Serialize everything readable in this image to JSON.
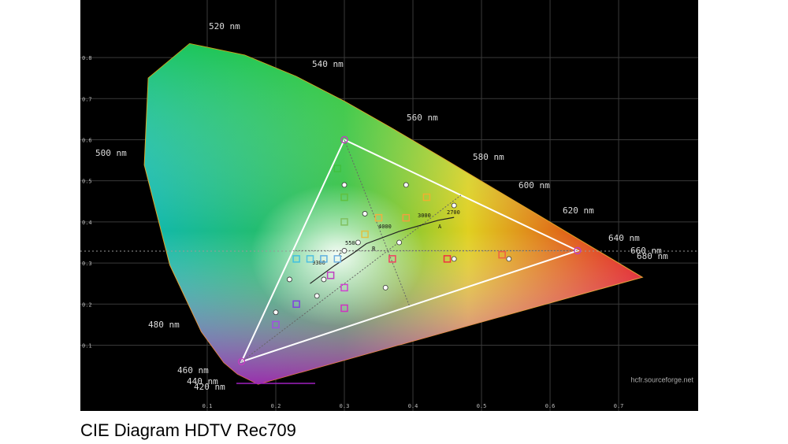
{
  "chart_data": {
    "type": "cie",
    "caption": "CIE Diagram HDTV Rec709",
    "watermark": "hcfr.sourceforge.net",
    "xlim": [
      -0.085,
      0.816
    ],
    "ylim": [
      -0.06,
      0.94
    ],
    "xticks": [
      0.1,
      0.2,
      0.3,
      0.4,
      0.5,
      0.6,
      0.7
    ],
    "yticks": [
      0.1,
      0.2,
      0.3,
      0.4,
      0.5,
      0.6,
      0.7,
      0.8
    ],
    "grid": true,
    "locus": {
      "x": [
        0.1741,
        0.144,
        0.1241,
        0.0913,
        0.0454,
        0.0082,
        0.0139,
        0.0743,
        0.1547,
        0.2296,
        0.3016,
        0.3731,
        0.4441,
        0.5125,
        0.5752,
        0.627,
        0.6915,
        0.719,
        0.7347
      ],
      "y": [
        0.005,
        0.0297,
        0.0578,
        0.1327,
        0.295,
        0.5384,
        0.7502,
        0.8338,
        0.8059,
        0.7543,
        0.6923,
        0.6245,
        0.5547,
        0.4866,
        0.4242,
        0.3725,
        0.3083,
        0.2809,
        0.2653
      ]
    },
    "locus_labels": [
      "520 nm",
      "540 nm",
      "560 nm",
      "580 nm",
      "600 nm",
      "620 nm",
      "640 nm",
      "660 nm",
      "680 nm",
      "500 nm",
      "480 nm",
      "460 nm",
      "440 nm",
      "420 nm"
    ],
    "gamut": {
      "x": [
        0.64,
        0.3,
        0.15
      ],
      "y": [
        0.33,
        0.6,
        0.06
      ]
    },
    "planckian": {
      "x": [
        0.25,
        0.285,
        0.313,
        0.332,
        0.38,
        0.437,
        0.46
      ],
      "y": [
        0.25,
        0.293,
        0.324,
        0.347,
        0.377,
        0.404,
        0.411
      ]
    },
    "cct_labels": [
      "9300",
      "5500",
      "4000",
      "3000",
      "2700",
      "A",
      "B",
      "C"
    ],
    "targets": {
      "x": [
        0.29,
        0.3,
        0.3,
        0.33,
        0.35,
        0.39,
        0.42,
        0.37,
        0.45,
        0.53,
        0.28,
        0.3,
        0.3,
        0.23,
        0.2,
        0.23,
        0.25,
        0.27,
        0.29
      ],
      "y": [
        0.53,
        0.46,
        0.4,
        0.37,
        0.41,
        0.41,
        0.46,
        0.31,
        0.31,
        0.32,
        0.27,
        0.24,
        0.19,
        0.2,
        0.15,
        0.31,
        0.31,
        0.31,
        0.31
      ],
      "colors": [
        "#40c040",
        "#60c040",
        "#80c060",
        "#e0c040",
        "#f0b040",
        "#f0a040",
        "#f0b030",
        "#f04060",
        "#f03040",
        "#f06040",
        "#c040c0",
        "#d040d0",
        "#d030c0",
        "#8040e0",
        "#a050e0",
        "#40c0e0",
        "#50c0e0",
        "#60b0e0",
        "#70b0e0"
      ]
    },
    "measured": {
      "x": [
        0.3,
        0.33,
        0.39,
        0.46,
        0.38,
        0.46,
        0.54,
        0.32,
        0.27,
        0.22,
        0.26,
        0.2,
        0.36,
        0.3
      ],
      "y": [
        0.49,
        0.42,
        0.49,
        0.44,
        0.35,
        0.31,
        0.31,
        0.35,
        0.26,
        0.26,
        0.22,
        0.18,
        0.24,
        0.33
      ],
      "color": "#ffffff"
    }
  }
}
